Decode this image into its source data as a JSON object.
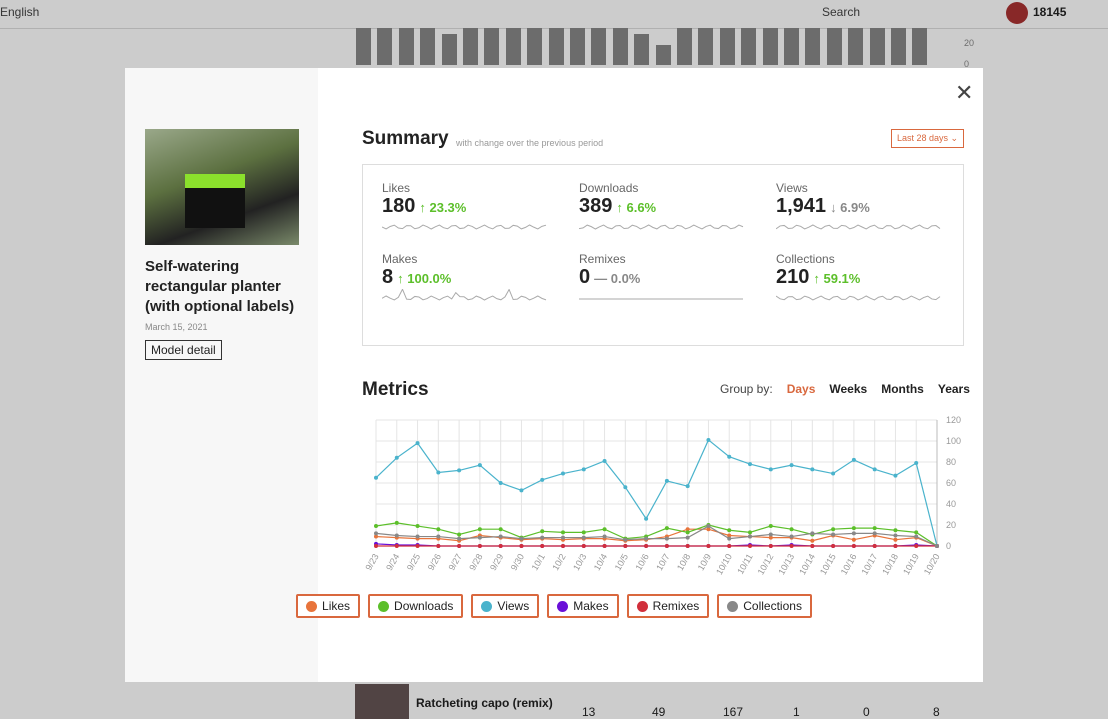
{
  "background": {
    "language": "English",
    "search": "Search",
    "points": "18145",
    "yticks": [
      "20",
      "0"
    ],
    "row": {
      "name": "Ratcheting capo (remix)",
      "cells": [
        "13",
        "49",
        "167",
        "1",
        "0",
        "8"
      ]
    }
  },
  "model": {
    "title": "Self-watering rectangular planter (with optional labels)",
    "date": "March 15, 2021",
    "button": "Model detail"
  },
  "summary": {
    "title": "Summary",
    "subtitle": "with change over the previous period",
    "period": "Last 28 days",
    "cards": [
      {
        "label": "Likes",
        "value": "180",
        "change": "↑ 23.3%"
      },
      {
        "label": "Downloads",
        "value": "389",
        "change": "↑ 6.6%"
      },
      {
        "label": "Views",
        "value": "1,941",
        "change": "↓ 6.9%"
      },
      {
        "label": "Makes",
        "value": "8",
        "change": "↑ 100.0%"
      },
      {
        "label": "Remixes",
        "value": "0",
        "change": "— 0.0%"
      },
      {
        "label": "Collections",
        "value": "210",
        "change": "↑ 59.1%"
      }
    ]
  },
  "metrics": {
    "title": "Metrics",
    "group_by": "Group by:",
    "groups": [
      "Days",
      "Weeks",
      "Months",
      "Years"
    ]
  },
  "chart_data": {
    "type": "line",
    "x": [
      "9/23",
      "9/24",
      "9/25",
      "9/26",
      "9/27",
      "9/28",
      "9/29",
      "9/30",
      "10/1",
      "10/2",
      "10/3",
      "10/4",
      "10/5",
      "10/6",
      "10/7",
      "10/8",
      "10/9",
      "10/10",
      "10/11",
      "10/12",
      "10/13",
      "10/14",
      "10/15",
      "10/16",
      "10/17",
      "10/18",
      "10/19",
      "10/20"
    ],
    "series": [
      {
        "name": "Likes",
        "color": "#e8743b",
        "values": [
          9,
          8,
          7,
          7,
          5,
          10,
          8,
          6,
          7,
          6,
          7,
          7,
          5,
          6,
          9,
          16,
          16,
          10,
          9,
          8,
          8,
          5,
          10,
          6,
          10,
          6,
          8,
          0
        ]
      },
      {
        "name": "Downloads",
        "color": "#5cbf2a",
        "values": [
          19,
          22,
          19,
          16,
          11,
          16,
          16,
          8,
          14,
          13,
          13,
          16,
          7,
          9,
          17,
          13,
          20,
          15,
          13,
          19,
          16,
          11,
          16,
          17,
          17,
          15,
          13,
          0
        ]
      },
      {
        "name": "Views",
        "color": "#4ab3cc",
        "values": [
          65,
          84,
          98,
          70,
          72,
          77,
          60,
          53,
          63,
          69,
          73,
          81,
          56,
          26,
          62,
          57,
          101,
          85,
          78,
          73,
          77,
          73,
          69,
          82,
          73,
          67,
          79,
          0
        ]
      },
      {
        "name": "Makes",
        "color": "#6a0fd8",
        "values": [
          2,
          1,
          1,
          0,
          0,
          0,
          0,
          0,
          0,
          0,
          0,
          0,
          0,
          0,
          0,
          0,
          0,
          0,
          1,
          0,
          1,
          0,
          0,
          0,
          0,
          0,
          1,
          0
        ]
      },
      {
        "name": "Remixes",
        "color": "#d12f3b",
        "values": [
          0,
          0,
          0,
          0,
          0,
          0,
          0,
          0,
          0,
          0,
          0,
          0,
          0,
          0,
          0,
          0,
          0,
          0,
          0,
          0,
          0,
          0,
          0,
          0,
          0,
          0,
          0,
          0
        ]
      },
      {
        "name": "Collections",
        "color": "#888888",
        "values": [
          12,
          10,
          9,
          9,
          7,
          8,
          9,
          7,
          8,
          8,
          8,
          9,
          6,
          7,
          7,
          8,
          19,
          7,
          9,
          11,
          9,
          12,
          11,
          12,
          12,
          10,
          9,
          0
        ]
      }
    ],
    "ylim": [
      0,
      120
    ],
    "yticks": [
      0,
      20,
      40,
      60,
      80,
      100,
      120
    ],
    "grid": true
  }
}
